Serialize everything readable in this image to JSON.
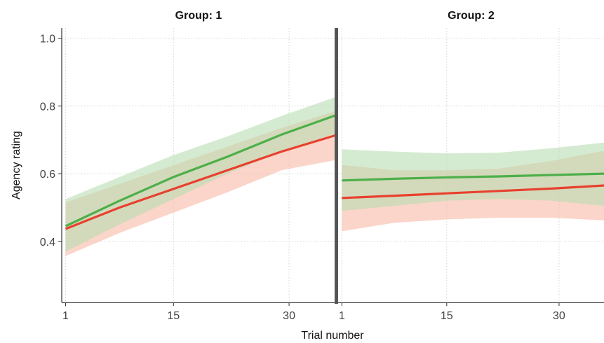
{
  "chart_data": {
    "type": "line",
    "xlabel": "Trial number",
    "ylabel": "Agency rating",
    "ylim": [
      0.22,
      1.03
    ],
    "xlim": [
      0.5,
      36
    ],
    "xticks": [
      1,
      15,
      30
    ],
    "yticks": [
      0.4,
      0.6,
      0.8,
      1.0
    ],
    "ytick_labels": [
      "0.4",
      "0.6",
      "0.8",
      "1.0"
    ],
    "grid": true,
    "colors": {
      "green": "#4daf4a",
      "red": "#e8402e",
      "green_band": "#b9ddb2",
      "red_band": "#f8b9a5"
    },
    "panels": [
      {
        "title": "Group: 1",
        "x": [
          1,
          8,
          15,
          22,
          29,
          36
        ],
        "series": [
          {
            "color": "green",
            "values": [
              0.445,
              0.52,
              0.59,
              0.65,
              0.715,
              0.772
            ],
            "lower": [
              0.37,
              0.45,
              0.525,
              0.6,
              0.665,
              0.718
            ],
            "upper": [
              0.525,
              0.59,
              0.655,
              0.71,
              0.77,
              0.826
            ]
          },
          {
            "color": "red",
            "values": [
              0.437,
              0.5,
              0.555,
              0.61,
              0.665,
              0.713
            ],
            "lower": [
              0.357,
              0.425,
              0.485,
              0.545,
              0.61,
              0.64
            ],
            "upper": [
              0.515,
              0.57,
              0.625,
              0.68,
              0.735,
              0.785
            ]
          }
        ]
      },
      {
        "title": "Group: 2",
        "x": [
          1,
          8,
          15,
          22,
          29,
          36
        ],
        "series": [
          {
            "color": "green",
            "values": [
              0.58,
              0.585,
              0.589,
              0.592,
              0.596,
              0.6
            ],
            "lower": [
              0.49,
              0.505,
              0.52,
              0.525,
              0.52,
              0.505
            ],
            "upper": [
              0.672,
              0.665,
              0.66,
              0.662,
              0.675,
              0.692
            ]
          },
          {
            "color": "red",
            "values": [
              0.528,
              0.535,
              0.542,
              0.549,
              0.556,
              0.565
            ],
            "lower": [
              0.43,
              0.455,
              0.465,
              0.47,
              0.47,
              0.462
            ],
            "upper": [
              0.626,
              0.61,
              0.61,
              0.615,
              0.638,
              0.668
            ]
          }
        ]
      }
    ]
  }
}
